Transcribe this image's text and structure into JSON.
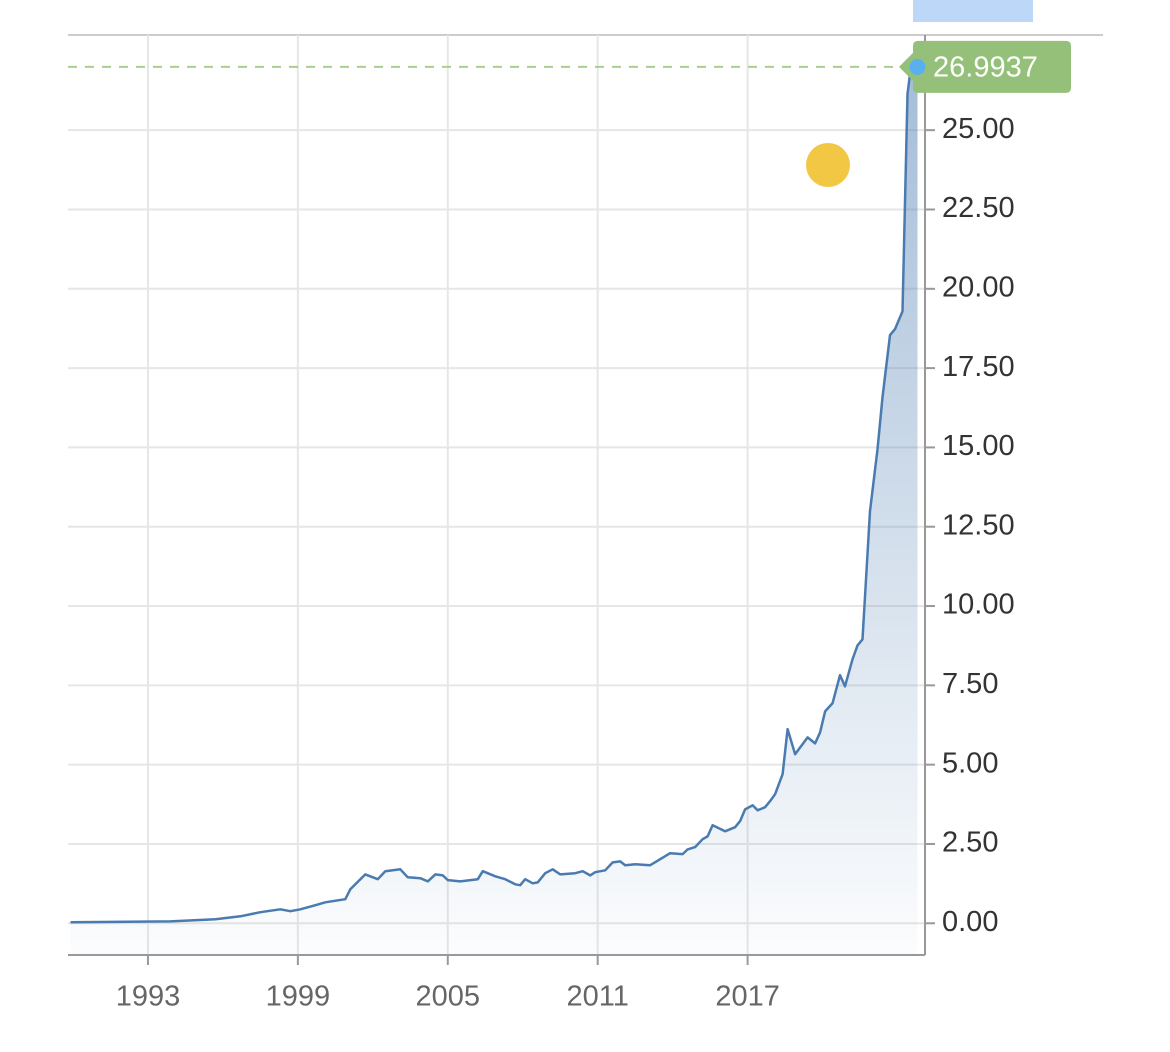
{
  "chart_data": {
    "type": "line",
    "x": [
      1989.9,
      1993.9,
      1995.7,
      1996.7,
      1997.5,
      1998.3,
      1998.7,
      1999.1,
      1999.7,
      2000.1,
      2000.9,
      2001.1,
      2001.7,
      2002.2,
      2002.5,
      2003.1,
      2003.4,
      2003.9,
      2004.2,
      2004.5,
      2004.8,
      2005.0,
      2005.5,
      2006.2,
      2006.4,
      2006.9,
      2007.3,
      2007.7,
      2007.9,
      2008.1,
      2008.4,
      2008.6,
      2008.9,
      2009.2,
      2009.5,
      2010.1,
      2010.4,
      2010.7,
      2010.9,
      2011.3,
      2011.6,
      2011.9,
      2012.1,
      2012.5,
      2013.1,
      2013.5,
      2013.9,
      2014.4,
      2014.6,
      2014.9,
      2015.2,
      2015.4,
      2015.6,
      2016.1,
      2016.5,
      2016.7,
      2016.9,
      2017.2,
      2017.4,
      2017.7,
      2017.9,
      2018.1,
      2018.4,
      2018.6,
      2018.9,
      2019.4,
      2019.7,
      2019.9,
      2020.1,
      2020.4,
      2020.7,
      2020.9,
      2021.2,
      2021.4,
      2021.6,
      2021.9,
      2022.2,
      2022.4,
      2022.7,
      2022.9,
      2023.2,
      2023.4,
      2023.5,
      2023.8
    ],
    "values": [
      0.03,
      0.06,
      0.13,
      0.22,
      0.35,
      0.44,
      0.38,
      0.44,
      0.57,
      0.66,
      0.76,
      1.07,
      1.54,
      1.39,
      1.64,
      1.7,
      1.45,
      1.42,
      1.32,
      1.54,
      1.51,
      1.36,
      1.32,
      1.39,
      1.64,
      1.48,
      1.39,
      1.23,
      1.2,
      1.39,
      1.26,
      1.29,
      1.58,
      1.7,
      1.54,
      1.58,
      1.64,
      1.51,
      1.61,
      1.67,
      1.92,
      1.95,
      1.83,
      1.86,
      1.83,
      2.02,
      2.21,
      2.18,
      2.33,
      2.4,
      2.65,
      2.74,
      3.09,
      2.9,
      3.03,
      3.22,
      3.59,
      3.72,
      3.56,
      3.66,
      3.85,
      4.07,
      4.7,
      6.12,
      5.33,
      5.86,
      5.67,
      6.02,
      6.68,
      6.94,
      7.82,
      7.47,
      8.32,
      8.76,
      8.95,
      12.99,
      14.94,
      16.58,
      18.54,
      18.73,
      19.29,
      26.14,
      26.77,
      26.9937
    ],
    "color": "#4a7bb0",
    "xlim": [
      1989.8,
      2024.1
    ],
    "xticks": [
      1993,
      1999,
      2005,
      2011,
      2017
    ],
    "ylim": [
      -1,
      28
    ],
    "yticks": [
      {
        "value": 0,
        "label": "0.00"
      },
      {
        "value": 2.5,
        "label": "2.50"
      },
      {
        "value": 5,
        "label": "5.00"
      },
      {
        "value": 7.5,
        "label": "7.50"
      },
      {
        "value": 10,
        "label": "10.00"
      },
      {
        "value": 12.5,
        "label": "12.50"
      },
      {
        "value": 15,
        "label": "15.00"
      },
      {
        "value": 17.5,
        "label": "17.50"
      },
      {
        "value": 20,
        "label": "20.00"
      },
      {
        "value": 22.5,
        "label": "22.50"
      },
      {
        "value": 25,
        "label": "25.00"
      }
    ],
    "grid": true
  }
}
